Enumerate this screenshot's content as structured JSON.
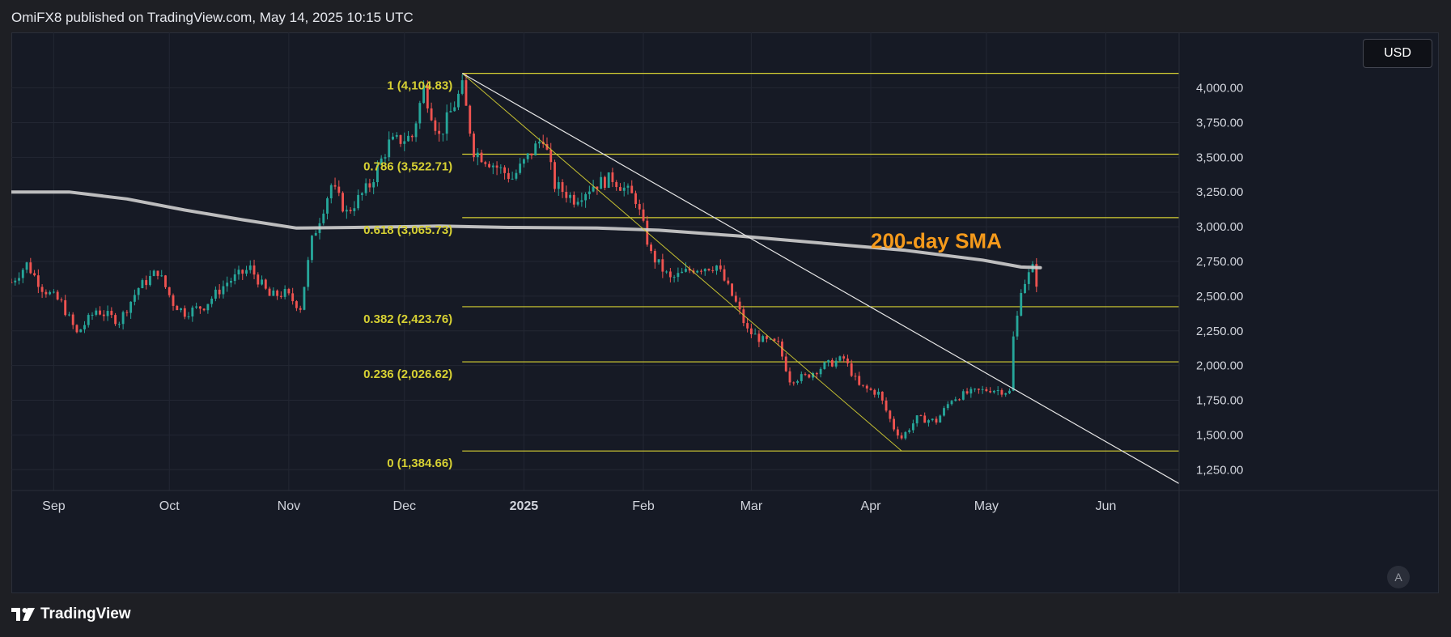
{
  "header": {
    "published": "OmiFX8 published on TradingView.com, May 14, 2025 10:15 UTC"
  },
  "brand": {
    "name": "TradingView"
  },
  "controls": {
    "currency": "USD",
    "auto_label": "A"
  },
  "colors": {
    "background": "#161a25",
    "up": "#26a69a",
    "down": "#ef5350",
    "fib": "#d6d033",
    "sma": "#cfcfcf",
    "annotation": "#f59a1b",
    "trend": "#e6e6e6"
  },
  "chart_data": {
    "type": "candlestick",
    "instrument_currency": "USD",
    "y_range": [
      1100,
      4400
    ],
    "y_ticks": [
      {
        "value": 4000,
        "label": "4,000.00"
      },
      {
        "value": 3750,
        "label": "3,750.00"
      },
      {
        "value": 3500,
        "label": "3,500.00"
      },
      {
        "value": 3250,
        "label": "3,250.00"
      },
      {
        "value": 3000,
        "label": "3,000.00"
      },
      {
        "value": 2750,
        "label": "2,750.00"
      },
      {
        "value": 2500,
        "label": "2,500.00"
      },
      {
        "value": 2250,
        "label": "2,250.00"
      },
      {
        "value": 2000,
        "label": "2,000.00"
      },
      {
        "value": 1750,
        "label": "1,750.00"
      },
      {
        "value": 1500,
        "label": "1,500.00"
      },
      {
        "value": 1250,
        "label": "1,250.00"
      }
    ],
    "x_range": [
      "2024-08-21",
      "2025-06-20"
    ],
    "x_ticks": [
      {
        "date": "2024-09-01",
        "label": "Sep",
        "bold": false
      },
      {
        "date": "2024-10-01",
        "label": "Oct",
        "bold": false
      },
      {
        "date": "2024-11-01",
        "label": "Nov",
        "bold": false
      },
      {
        "date": "2024-12-01",
        "label": "Dec",
        "bold": false
      },
      {
        "date": "2025-01-01",
        "label": "2025",
        "bold": true
      },
      {
        "date": "2025-02-01",
        "label": "Feb",
        "bold": false
      },
      {
        "date": "2025-03-01",
        "label": "Mar",
        "bold": false
      },
      {
        "date": "2025-04-01",
        "label": "Apr",
        "bold": false
      },
      {
        "date": "2025-05-01",
        "label": "May",
        "bold": false
      },
      {
        "date": "2025-06-01",
        "label": "Jun",
        "bold": false
      }
    ],
    "price_path": [
      [
        "2024-08-21",
        2600
      ],
      [
        "2024-08-25",
        2730
      ],
      [
        "2024-08-29",
        2560
      ],
      [
        "2024-09-03",
        2450
      ],
      [
        "2024-09-07",
        2230
      ],
      [
        "2024-09-12",
        2400
      ],
      [
        "2024-09-18",
        2320
      ],
      [
        "2024-09-23",
        2560
      ],
      [
        "2024-09-28",
        2680
      ],
      [
        "2024-10-02",
        2450
      ],
      [
        "2024-10-05",
        2380
      ],
      [
        "2024-10-10",
        2430
      ],
      [
        "2024-10-16",
        2600
      ],
      [
        "2024-10-22",
        2700
      ],
      [
        "2024-10-27",
        2500
      ],
      [
        "2024-10-31",
        2520
      ],
      [
        "2024-11-04",
        2420
      ],
      [
        "2024-11-07",
        2900
      ],
      [
        "2024-11-12",
        3300
      ],
      [
        "2024-11-16",
        3100
      ],
      [
        "2024-11-22",
        3300
      ],
      [
        "2024-11-27",
        3600
      ],
      [
        "2024-12-03",
        3650
      ],
      [
        "2024-12-06",
        4000
      ],
      [
        "2024-12-10",
        3650
      ],
      [
        "2024-12-16",
        4000
      ],
      [
        "2024-12-19",
        3550
      ],
      [
        "2024-12-24",
        3450
      ],
      [
        "2024-12-29",
        3350
      ],
      [
        "2025-01-06",
        3650
      ],
      [
        "2025-01-09",
        3300
      ],
      [
        "2025-01-14",
        3200
      ],
      [
        "2025-01-19",
        3300
      ],
      [
        "2025-01-24",
        3350
      ],
      [
        "2025-01-30",
        3200
      ],
      [
        "2025-02-03",
        2800
      ],
      [
        "2025-02-08",
        2620
      ],
      [
        "2025-02-14",
        2700
      ],
      [
        "2025-02-20",
        2720
      ],
      [
        "2025-02-25",
        2450
      ],
      [
        "2025-02-28",
        2250
      ],
      [
        "2025-03-04",
        2180
      ],
      [
        "2025-03-08",
        2150
      ],
      [
        "2025-03-11",
        1900
      ],
      [
        "2025-03-15",
        1920
      ],
      [
        "2025-03-20",
        2000
      ],
      [
        "2025-03-25",
        2050
      ],
      [
        "2025-03-29",
        1850
      ],
      [
        "2025-04-03",
        1800
      ],
      [
        "2025-04-07",
        1550
      ],
      [
        "2025-04-09",
        1480
      ],
      [
        "2025-04-13",
        1620
      ],
      [
        "2025-04-18",
        1600
      ],
      [
        "2025-04-22",
        1760
      ],
      [
        "2025-04-26",
        1800
      ],
      [
        "2025-05-02",
        1830
      ],
      [
        "2025-05-07",
        1810
      ],
      [
        "2025-05-08",
        2200
      ],
      [
        "2025-05-09",
        2350
      ],
      [
        "2025-05-10",
        2560
      ],
      [
        "2025-05-13",
        2700
      ],
      [
        "2025-05-14",
        2600
      ]
    ],
    "sma_200": [
      [
        "2024-08-21",
        3250
      ],
      [
        "2024-09-05",
        3250
      ],
      [
        "2024-09-20",
        3200
      ],
      [
        "2024-10-05",
        3120
      ],
      [
        "2024-10-20",
        3050
      ],
      [
        "2024-11-03",
        2990
      ],
      [
        "2024-11-18",
        2995
      ],
      [
        "2024-12-10",
        3005
      ],
      [
        "2024-12-28",
        2995
      ],
      [
        "2025-01-20",
        2990
      ],
      [
        "2025-02-05",
        2975
      ],
      [
        "2025-02-25",
        2935
      ],
      [
        "2025-03-20",
        2880
      ],
      [
        "2025-04-10",
        2830
      ],
      [
        "2025-04-30",
        2760
      ],
      [
        "2025-05-10",
        2710
      ],
      [
        "2025-05-15",
        2705
      ]
    ],
    "sma_label": "200-day SMA",
    "fib_start_date": "2024-12-16",
    "fib_end_date": "2025-06-20",
    "fib_levels": [
      {
        "value": 4104.83,
        "label": "1 (4,104.83)"
      },
      {
        "value": 3522.71,
        "label": "0.786 (3,522.71)"
      },
      {
        "value": 3065.73,
        "label": "0.618 (3,065.73)"
      },
      {
        "value": 2423.76,
        "label": "0.382 (2,423.76)"
      },
      {
        "value": 2026.62,
        "label": "0.236 (2,026.62)"
      },
      {
        "value": 1384.66,
        "label": "0 (1,384.66)"
      }
    ],
    "fib_diagonal": [
      [
        "2024-12-16",
        4104.83
      ],
      [
        "2025-04-09",
        1384.66
      ]
    ],
    "trendline": [
      [
        "2024-12-16",
        4104.83
      ],
      [
        "2025-06-20",
        1150
      ]
    ]
  }
}
